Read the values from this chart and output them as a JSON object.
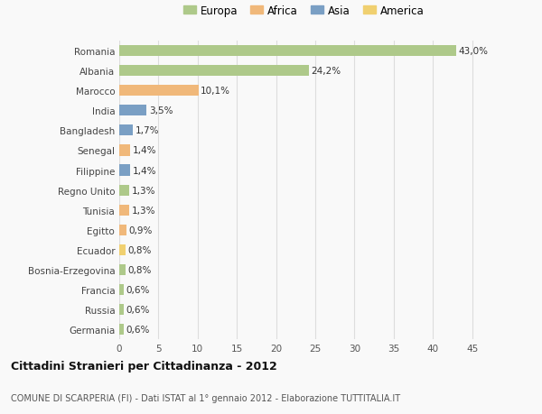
{
  "countries": [
    "Romania",
    "Albania",
    "Marocco",
    "India",
    "Bangladesh",
    "Senegal",
    "Filippine",
    "Regno Unito",
    "Tunisia",
    "Egitto",
    "Ecuador",
    "Bosnia-Erzegovina",
    "Francia",
    "Russia",
    "Germania"
  ],
  "values": [
    43.0,
    24.2,
    10.1,
    3.5,
    1.7,
    1.4,
    1.4,
    1.3,
    1.3,
    0.9,
    0.8,
    0.8,
    0.6,
    0.6,
    0.6
  ],
  "labels": [
    "43,0%",
    "24,2%",
    "10,1%",
    "3,5%",
    "1,7%",
    "1,4%",
    "1,4%",
    "1,3%",
    "1,3%",
    "0,9%",
    "0,8%",
    "0,8%",
    "0,6%",
    "0,6%",
    "0,6%"
  ],
  "continents": [
    "Europa",
    "Europa",
    "Africa",
    "Asia",
    "Asia",
    "Africa",
    "Asia",
    "Europa",
    "Africa",
    "Africa",
    "America",
    "Europa",
    "Europa",
    "Europa",
    "Europa"
  ],
  "continent_colors": {
    "Europa": "#aec98a",
    "Africa": "#f0b87a",
    "Asia": "#7a9fc4",
    "America": "#f0d070"
  },
  "legend_order": [
    "Europa",
    "Africa",
    "Asia",
    "America"
  ],
  "title": "Cittadini Stranieri per Cittadinanza - 2012",
  "subtitle": "COMUNE DI SCARPERIA (FI) - Dati ISTAT al 1° gennaio 2012 - Elaborazione TUTTITALIA.IT",
  "xlim": [
    0,
    47
  ],
  "xticks": [
    0,
    5,
    10,
    15,
    20,
    25,
    30,
    35,
    40,
    45
  ],
  "bg_color": "#f9f9f9",
  "grid_color": "#dddddd",
  "bar_height": 0.55
}
